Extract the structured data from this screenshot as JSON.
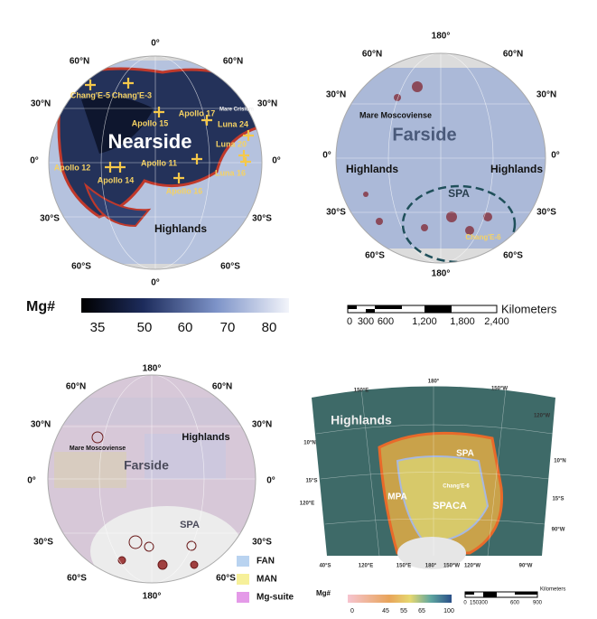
{
  "nearside": {
    "meridian_top": "0°",
    "meridian_bottom": "0°",
    "lat_left": [
      "60°N",
      "30°N",
      "0°",
      "30°S",
      "60°S"
    ],
    "lat_right": [
      "60°N",
      "30°N",
      "0°",
      "30°S",
      "60°S"
    ],
    "sites": [
      "Chang'E-5",
      "Chang'E-3",
      "Apollo 15",
      "Apollo 17",
      "Mare Crisium",
      "Luna 24",
      "Luna 20",
      "Apollo 12",
      "Apollo 14",
      "Apollo 11",
      "Luna 16",
      "Apollo 16"
    ],
    "region": "Nearside",
    "highlands": "Highlands"
  },
  "farside": {
    "meridian_top": "180°",
    "meridian_bottom": "180°",
    "lat_left": [
      "60°N",
      "30°N",
      "0°",
      "30°S",
      "60°S"
    ],
    "lat_right": [
      "60°N",
      "30°N",
      "0°",
      "30°S",
      "60°S"
    ],
    "labels": [
      "Mare Moscoviense",
      "Farside",
      "Highlands",
      "Highlands",
      "SPA",
      "Chang'E-6"
    ]
  },
  "colorbar": {
    "label": "Mg#",
    "ticks": [
      "35",
      "50",
      "60",
      "70",
      "80"
    ]
  },
  "scalebar": {
    "unit": "Kilometers",
    "ticks": [
      "0",
      "300",
      "600",
      "1,200",
      "1,800",
      "2,400"
    ]
  },
  "lithology": {
    "meridian_top": "180°",
    "meridian_bottom": "180°",
    "lat_left": [
      "60°N",
      "30°N",
      "0°",
      "30°S",
      "60°S"
    ],
    "lat_right": [
      "60°N",
      "30°N",
      "0°",
      "30°S",
      "60°S"
    ],
    "labels": [
      "Mare Moscoviense",
      "Highlands",
      "Farside",
      "SPA"
    ],
    "legend": [
      "FAN",
      "MAN",
      "Mg-suite"
    ]
  },
  "spa_map": {
    "top_lon": [
      "150°E",
      "180°",
      "150°W",
      "120°W"
    ],
    "left_lat": [
      "10°N",
      "15°S",
      "120°E"
    ],
    "right_lat": [
      "10°N",
      "15°S",
      "90°W"
    ],
    "bottom_lon": [
      "40°S",
      "120°E",
      "150°E",
      "180°",
      "150°W",
      "120°W",
      "90°W"
    ],
    "labels": [
      "Highlands",
      "SPA",
      "MPA",
      "SPACA",
      "Chang'E-6"
    ],
    "colorbar": {
      "label": "Mg#",
      "ticks": [
        "0",
        "45",
        "55",
        "65",
        "100"
      ]
    },
    "scalebar": {
      "unit": "Kilometers",
      "ticks": [
        "0",
        "150",
        "300",
        "600",
        "900"
      ]
    }
  }
}
